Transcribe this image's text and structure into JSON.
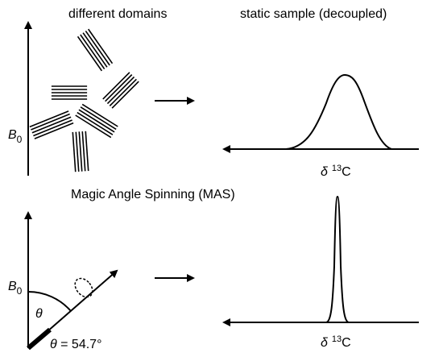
{
  "top": {
    "left_title": "different domains",
    "right_title": "static sample (decoupled)",
    "field_label": {
      "main": "B",
      "sub": "0"
    },
    "axis_label": {
      "symbol": "δ",
      "isotope": "13",
      "element": "C"
    }
  },
  "bottom": {
    "title": "Magic Angle Spinning (MAS)",
    "field_label": {
      "main": "B",
      "sub": "0"
    },
    "angle_symbol": "θ",
    "angle_equation": {
      "symbol": "θ",
      "rest": " = 54.7°"
    },
    "axis_label": {
      "symbol": "δ",
      "isotope": "13",
      "element": "C"
    }
  }
}
